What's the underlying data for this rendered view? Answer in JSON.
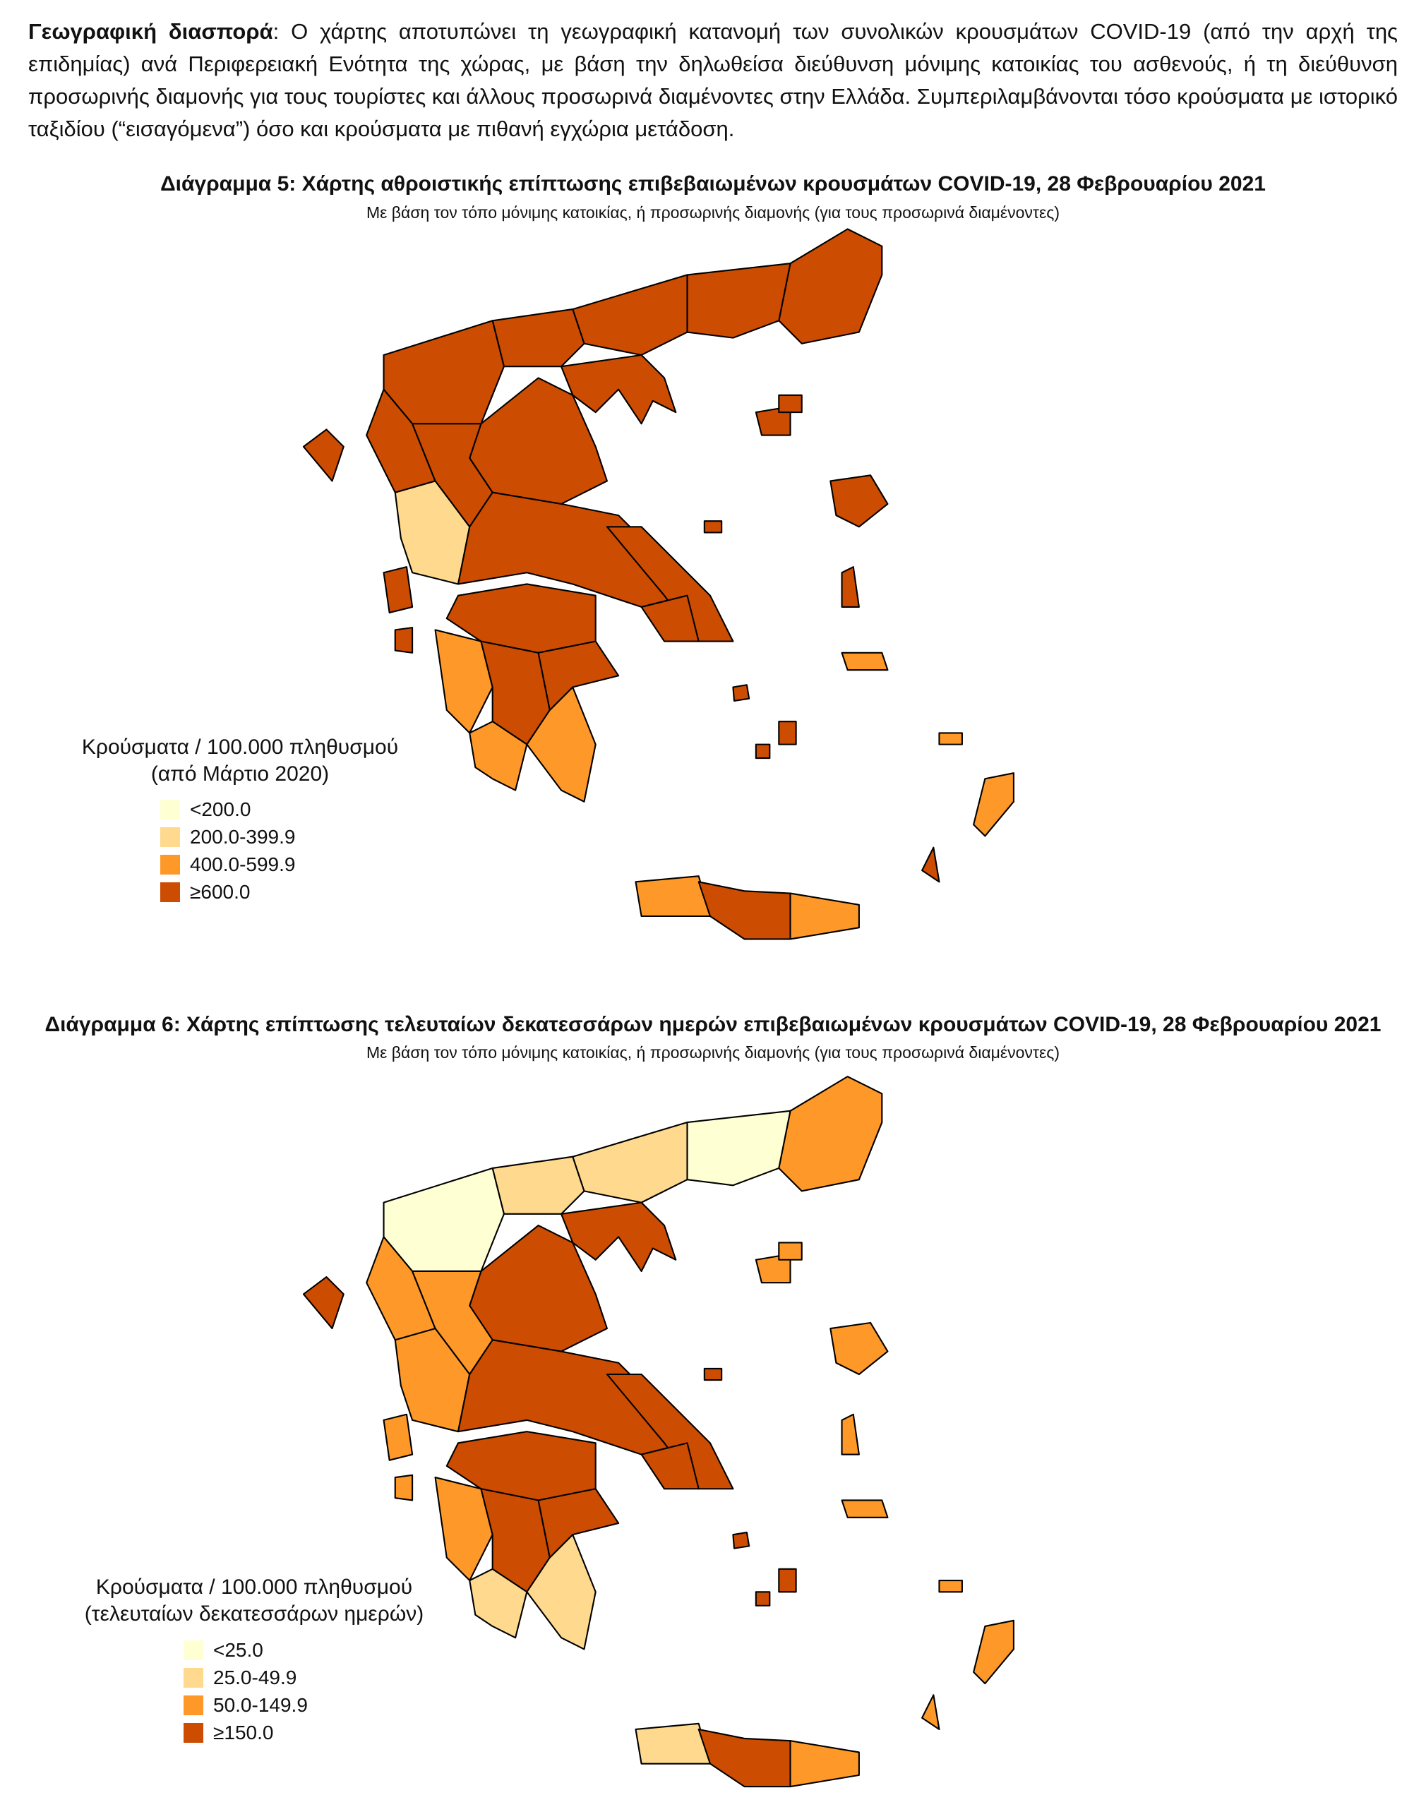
{
  "paragraph": {
    "lead": "Γεωγραφική διασπορά",
    "text": ": Ο χάρτης αποτυπώνει τη γεωγραφική κατανομή των συνολικών κρουσμάτων COVID-19 (από την αρχή της επιδημίας) ανά Περιφερειακή Ενότητα της χώρας, με βάση την δηλωθείσα διεύθυνση μόνιμης κατοικίας του ασθενούς, ή τη διεύθυνση προσωρινής διαμονής για τους τουρίστες και άλλους προσωρινά διαμένοντες στην Ελλάδα. Συμπεριλαμβάνονται τόσο κρούσματα με ιστορικό ταξιδίου (“εισαγόμενα”) όσο και κρούσματα με πιθανή εγχώρια μετάδοση."
  },
  "figures": [
    {
      "title": "Διάγραμμα 5: Χάρτης αθροιστικής επίπτωσης επιβεβαιωμένων κρουσμάτων COVID-19, 28 Φεβρουαρίου 2021",
      "subtitle": "Με βάση τον τόπο μόνιμης κατοικίας, ή προσωρινής διαμονής (για τους προσωρινά διαμένοντες)",
      "legend": {
        "title": "Κρούσματα / 100.000 πληθυσμού",
        "subtitle": "(από Μάρτιο 2020)",
        "items": [
          {
            "label": "<200.0",
            "color": "#ffffd4"
          },
          {
            "label": "200.0-399.9",
            "color": "#fed98e"
          },
          {
            "label": "400.0-599.9",
            "color": "#fe9929"
          },
          {
            "label": "≥600.0",
            "color": "#cc4c02"
          }
        ]
      }
    },
    {
      "title": "Διάγραμμα 6: Χάρτης επίπτωσης τελευταίων δεκατεσσάρων ημερών επιβεβαιωμένων κρουσμάτων COVID-19, 28 Φεβρουαρίου 2021",
      "subtitle": "Με βάση τον τόπο μόνιμης κατοικίας, ή προσωρινής διαμονής (για τους προσωρινά διαμένοντες)",
      "legend": {
        "title": "Κρούσματα / 100.000 πληθυσμού",
        "subtitle": "(τελευταίων δεκατεσσάρων ημερών)",
        "items": [
          {
            "label": "<25.0",
            "color": "#ffffd4"
          },
          {
            "label": "25.0-49.9",
            "color": "#fed98e"
          },
          {
            "label": "50.0-149.9",
            "color": "#fe9929"
          },
          {
            "label": "≥150.0",
            "color": "#cc4c02"
          }
        ]
      }
    }
  ]
}
